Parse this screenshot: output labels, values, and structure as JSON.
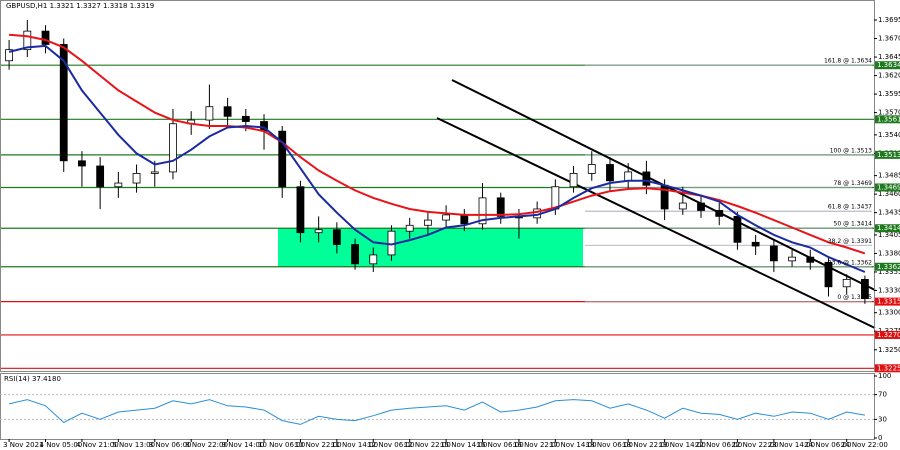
{
  "chart_data": {
    "type": "candlestick",
    "title": "GBPUSD,H1  1.3321 1.3327 1.3318 1.3319",
    "categories": [
      "3 Nov 2021",
      null,
      "4 Nov 05:00",
      null,
      "4 Nov 21:00",
      null,
      "5 Nov 13:00",
      null,
      "8 Nov 06:00",
      null,
      "8 Nov 22:00",
      null,
      "9 Nov 14:00",
      null,
      "10 Nov 06:00",
      null,
      "10 Nov 22:00",
      null,
      "11 Nov 14:00",
      null,
      "12 Nov 06:00",
      null,
      "12 Nov 22:00",
      null,
      "15 Nov 14:00",
      null,
      "16 Nov 06:00",
      null,
      "16 Nov 22:00",
      null,
      "17 Nov 14:00",
      null,
      "18 Nov 06:00",
      null,
      "18 Nov 22:00",
      null,
      "19 Nov 14:00",
      null,
      "22 Nov 06:00",
      null,
      "22 Nov 22:00",
      null,
      "23 Nov 14:00",
      null,
      "24 Nov 06:00",
      null,
      "24 Nov 22:00",
      null
    ],
    "open": [
      1.364,
      1.3655,
      1.368,
      1.3662,
      1.3505,
      1.3498,
      1.347,
      1.3475,
      1.3488,
      1.349,
      1.3555,
      1.356,
      1.3578,
      1.3565,
      1.3558,
      1.3545,
      1.347,
      1.3408,
      1.3412,
      1.3392,
      1.3366,
      1.3378,
      1.341,
      1.3418,
      1.3425,
      1.3432,
      1.342,
      1.3455,
      1.343,
      1.3428,
      1.344,
      1.347,
      1.3488,
      1.35,
      1.3478,
      1.349,
      1.3472,
      1.344,
      1.3448,
      1.3438,
      1.343,
      1.3395,
      1.339,
      1.337,
      1.3375,
      1.3368,
      1.3335,
      1.3345
    ],
    "high": [
      1.3668,
      1.3695,
      1.3688,
      1.367,
      1.3518,
      1.351,
      1.349,
      1.35,
      1.3505,
      1.3575,
      1.3572,
      1.3608,
      1.359,
      1.3575,
      1.3568,
      1.3552,
      1.3478,
      1.343,
      1.3422,
      1.34,
      1.3388,
      1.3418,
      1.3428,
      1.3435,
      1.3445,
      1.344,
      1.3475,
      1.3462,
      1.344,
      1.345,
      1.348,
      1.3498,
      1.3518,
      1.351,
      1.3502,
      1.3505,
      1.348,
      1.347,
      1.3458,
      1.3448,
      1.3436,
      1.3405,
      1.3398,
      1.3385,
      1.3385,
      1.3375,
      1.3352,
      1.335
    ],
    "low": [
      1.3628,
      1.3645,
      1.365,
      1.349,
      1.347,
      1.344,
      1.3455,
      1.3462,
      1.347,
      1.348,
      1.354,
      1.3548,
      1.355,
      1.3545,
      1.352,
      1.3455,
      1.3395,
      1.3395,
      1.338,
      1.3358,
      1.3355,
      1.337,
      1.34,
      1.3405,
      1.3415,
      1.341,
      1.3412,
      1.342,
      1.34,
      1.342,
      1.3432,
      1.3462,
      1.3478,
      1.3465,
      1.3468,
      1.346,
      1.3425,
      1.3432,
      1.3428,
      1.3418,
      1.3385,
      1.3378,
      1.3355,
      1.3362,
      1.3358,
      1.3322,
      1.3325,
      1.3312
    ],
    "close": [
      1.3655,
      1.368,
      1.3662,
      1.3505,
      1.3498,
      1.347,
      1.3475,
      1.3488,
      1.349,
      1.3555,
      1.356,
      1.3578,
      1.3565,
      1.3558,
      1.3545,
      1.347,
      1.3408,
      1.3412,
      1.3392,
      1.3366,
      1.3378,
      1.341,
      1.3418,
      1.3425,
      1.3432,
      1.342,
      1.3455,
      1.343,
      1.3428,
      1.344,
      1.347,
      1.3488,
      1.35,
      1.3478,
      1.349,
      1.3472,
      1.344,
      1.3448,
      1.3438,
      1.343,
      1.3395,
      1.339,
      1.337,
      1.3375,
      1.3368,
      1.3335,
      1.3345,
      1.3319
    ],
    "lines": [
      {
        "color": "#e8141a",
        "values": [
          1.3675,
          1.3673,
          1.3668,
          1.3658,
          1.364,
          1.362,
          1.36,
          1.3585,
          1.357,
          1.356,
          1.3555,
          1.3552,
          1.3552,
          1.355,
          1.3545,
          1.353,
          1.351,
          1.3492,
          1.3478,
          1.3465,
          1.3455,
          1.3447,
          1.344,
          1.3436,
          1.3434,
          1.3432,
          1.3432,
          1.3432,
          1.3433,
          1.3436,
          1.3442,
          1.345,
          1.3458,
          1.3464,
          1.3467,
          1.3468,
          1.3466,
          1.3462,
          1.3458,
          1.3452,
          1.3444,
          1.3435,
          1.3425,
          1.3415,
          1.3405,
          1.3395,
          1.3388,
          1.338
        ]
      },
      {
        "color": "#1a2aa0",
        "values": [
          1.3652,
          1.3658,
          1.366,
          1.364,
          1.36,
          1.357,
          1.354,
          1.3515,
          1.35,
          1.3505,
          1.352,
          1.3538,
          1.355,
          1.3552,
          1.355,
          1.353,
          1.3495,
          1.346,
          1.3435,
          1.3412,
          1.3395,
          1.3392,
          1.3398,
          1.3405,
          1.3415,
          1.3418,
          1.3425,
          1.3428,
          1.343,
          1.3432,
          1.344,
          1.3455,
          1.3468,
          1.3475,
          1.3478,
          1.3478,
          1.3472,
          1.3465,
          1.3458,
          1.345,
          1.3432,
          1.3418,
          1.3405,
          1.3395,
          1.3388,
          1.3375,
          1.3365,
          1.3355
        ]
      }
    ],
    "ylim": [
      1.322,
      1.3722
    ],
    "yticks": [
      1.3695,
      {
        "value": 1.367,
        "label": "1.3670"
      },
      1.3645,
      {
        "value": 1.362,
        "label": "1.3620"
      },
      1.3595,
      {
        "value": 1.357,
        "label": "1.3570"
      },
      {
        "value": 1.354,
        "label": "1.3540"
      },
      1.3515,
      1.3485,
      {
        "value": 1.346,
        "label": "1.3460"
      },
      1.3435,
      1.3405,
      {
        "value": 1.338,
        "label": "1.3380"
      },
      1.3355,
      {
        "value": 1.333,
        "label": "1.3330"
      },
      {
        "value": 1.33,
        "label": "1.3300"
      },
      1.3275,
      {
        "value": 1.325,
        "label": "1.3250"
      }
    ],
    "levels": [
      {
        "value": 1.3634,
        "color": "#1f7a1f"
      },
      {
        "value": 1.3561,
        "color": "#1f7a1f"
      },
      {
        "value": 1.3513,
        "color": "#1f7a1f"
      },
      {
        "value": 1.3469,
        "color": "#1f7a1f"
      },
      {
        "value": 1.3414,
        "color": "#1f7a1f"
      },
      {
        "value": 1.3362,
        "color": "#1f7a1f"
      },
      {
        "value": 1.3315,
        "color": "#e01010"
      },
      {
        "value": {
          "value": 1.327,
          "label": "1.3270"
        },
        "color": "#e01010"
      },
      {
        "value": 1.3225,
        "color": "#e01010"
      }
    ],
    "zone": {
      "range": [
        1.3414,
        1.3362
      ],
      "color": "#00ff99"
    },
    "fibonacci": [
      {
        "label": "161.8 @ 1.3634",
        "value": 1.3634
      },
      {
        "label": "100 @ 1.3513",
        "value": 1.3513
      },
      {
        "label": "78 @ 1.3469",
        "value": 1.3469
      },
      {
        "label": "61.8 @ 1.3437",
        "value": 1.3437
      },
      {
        "label": "50 @ 1.3414",
        "value": 1.3414
      },
      {
        "label": "38.2 @ 1.3391",
        "value": 1.3391
      },
      {
        "label": "23.6 @ 1.3362",
        "value": 1.3362
      },
      {
        "label": "0 @ 1.3315",
        "value": 1.3315
      }
    ],
    "rsi": {
      "label": "RSI(14) 37.4180",
      "color": "#2a8fd8",
      "values": [
        55,
        62,
        52,
        25,
        40,
        30,
        42,
        45,
        48,
        60,
        55,
        62,
        52,
        50,
        45,
        28,
        22,
        35,
        30,
        28,
        36,
        45,
        48,
        50,
        52,
        45,
        58,
        42,
        45,
        50,
        60,
        62,
        60,
        48,
        55,
        45,
        32,
        48,
        40,
        38,
        30,
        40,
        35,
        42,
        40,
        30,
        42,
        37
      ],
      "ylim": [
        0,
        100
      ],
      "yticks": [
        100,
        70,
        30,
        0
      ]
    }
  }
}
